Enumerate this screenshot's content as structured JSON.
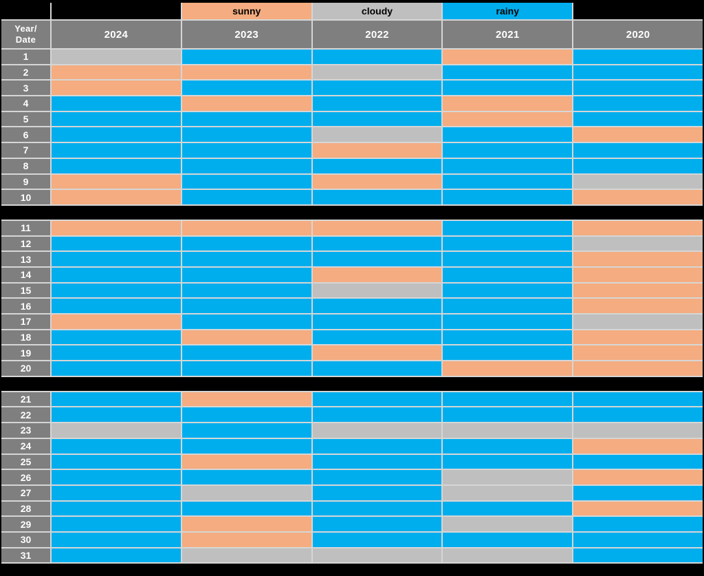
{
  "colors": {
    "sunny": "#F4AC80",
    "cloudy": "#BFBFBF",
    "rainy": "#00AEEE",
    "header_bg": "#7F7F7F",
    "divider": "#D6D6D6",
    "page_bg": "#000000",
    "header_text": "#FFFFFF",
    "legend_text": "#000000"
  },
  "legend": {
    "sunny": "sunny",
    "cloudy": "cloudy",
    "rainy": "rainy"
  },
  "header": {
    "corner_line1": "Year/",
    "corner_line2": "Date",
    "years": [
      "2024",
      "2023",
      "2022",
      "2021",
      "2020"
    ]
  },
  "chart_data": {
    "type": "heatmap",
    "row_header": "Year/Date",
    "columns": [
      "2024",
      "2023",
      "2022",
      "2021",
      "2020"
    ],
    "row_labels_range": [
      1,
      31
    ],
    "categories": [
      "sunny",
      "cloudy",
      "rainy"
    ],
    "legend_position": "top",
    "sections": [
      {
        "start": 1,
        "end": 10
      },
      {
        "start": 11,
        "end": 20
      },
      {
        "start": 21,
        "end": 31
      }
    ],
    "cells": [
      [
        "cloudy",
        "rainy",
        "rainy",
        "sunny",
        "rainy"
      ],
      [
        "sunny",
        "sunny",
        "cloudy",
        "rainy",
        "rainy"
      ],
      [
        "sunny",
        "rainy",
        "rainy",
        "rainy",
        "rainy"
      ],
      [
        "rainy",
        "sunny",
        "rainy",
        "sunny",
        "rainy"
      ],
      [
        "rainy",
        "rainy",
        "rainy",
        "sunny",
        "rainy"
      ],
      [
        "rainy",
        "rainy",
        "cloudy",
        "rainy",
        "sunny"
      ],
      [
        "rainy",
        "rainy",
        "sunny",
        "rainy",
        "rainy"
      ],
      [
        "rainy",
        "rainy",
        "rainy",
        "rainy",
        "rainy"
      ],
      [
        "sunny",
        "rainy",
        "sunny",
        "rainy",
        "cloudy"
      ],
      [
        "sunny",
        "rainy",
        "rainy",
        "rainy",
        "sunny"
      ],
      [
        "sunny",
        "sunny",
        "sunny",
        "rainy",
        "sunny"
      ],
      [
        "rainy",
        "rainy",
        "rainy",
        "rainy",
        "cloudy"
      ],
      [
        "rainy",
        "rainy",
        "rainy",
        "rainy",
        "sunny"
      ],
      [
        "rainy",
        "rainy",
        "sunny",
        "rainy",
        "sunny"
      ],
      [
        "rainy",
        "rainy",
        "cloudy",
        "rainy",
        "sunny"
      ],
      [
        "rainy",
        "rainy",
        "rainy",
        "rainy",
        "sunny"
      ],
      [
        "sunny",
        "rainy",
        "rainy",
        "rainy",
        "cloudy"
      ],
      [
        "rainy",
        "sunny",
        "rainy",
        "rainy",
        "sunny"
      ],
      [
        "rainy",
        "rainy",
        "sunny",
        "rainy",
        "sunny"
      ],
      [
        "rainy",
        "rainy",
        "rainy",
        "sunny",
        "sunny"
      ],
      [
        "rainy",
        "sunny",
        "rainy",
        "rainy",
        "rainy"
      ],
      [
        "rainy",
        "rainy",
        "rainy",
        "rainy",
        "rainy"
      ],
      [
        "cloudy",
        "rainy",
        "cloudy",
        "cloudy",
        "cloudy"
      ],
      [
        "rainy",
        "rainy",
        "rainy",
        "rainy",
        "sunny"
      ],
      [
        "rainy",
        "sunny",
        "rainy",
        "rainy",
        "rainy"
      ],
      [
        "rainy",
        "rainy",
        "rainy",
        "cloudy",
        "sunny"
      ],
      [
        "rainy",
        "cloudy",
        "rainy",
        "cloudy",
        "rainy"
      ],
      [
        "rainy",
        "rainy",
        "rainy",
        "rainy",
        "sunny"
      ],
      [
        "rainy",
        "sunny",
        "rainy",
        "cloudy",
        "rainy"
      ],
      [
        "rainy",
        "sunny",
        "rainy",
        "rainy",
        "rainy"
      ],
      [
        "rainy",
        "cloudy",
        "cloudy",
        "cloudy",
        "rainy"
      ]
    ]
  }
}
